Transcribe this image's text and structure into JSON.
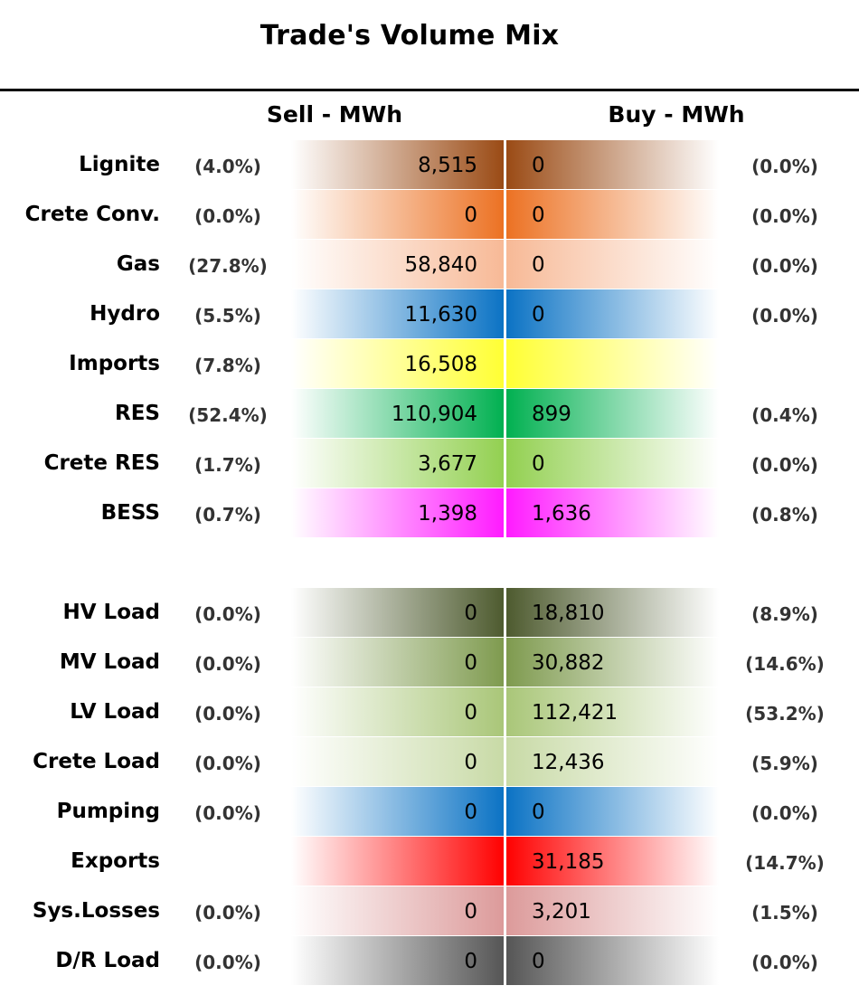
{
  "title": "Trade's Volume Mix",
  "headers": {
    "sell": "Sell - MWh",
    "buy": "Buy - MWh"
  },
  "chart_data": {
    "type": "table",
    "title": "Trade's Volume Mix",
    "columns": [
      "Sell - MWh",
      "Buy - MWh"
    ],
    "groups": [
      {
        "rows": [
          {
            "label": "Lignite",
            "sell_pct": "(4.0%)",
            "sell": "8,515",
            "sell_num": 8515,
            "buy": "0",
            "buy_num": 0,
            "buy_pct": "(0.0%)",
            "color": "#9a4a14"
          },
          {
            "label": "Crete Conv.",
            "sell_pct": "(0.0%)",
            "sell": "0",
            "sell_num": 0,
            "buy": "0",
            "buy_num": 0,
            "buy_pct": "(0.0%)",
            "color": "#ec7122"
          },
          {
            "label": "Gas",
            "sell_pct": "(27.8%)",
            "sell": "58,840",
            "sell_num": 58840,
            "buy": "0",
            "buy_num": 0,
            "buy_pct": "(0.0%)",
            "color": "#f7b996"
          },
          {
            "label": "Hydro",
            "sell_pct": "(5.5%)",
            "sell": "11,630",
            "sell_num": 11630,
            "buy": "0",
            "buy_num": 0,
            "buy_pct": "(0.0%)",
            "color": "#0a72c4"
          },
          {
            "label": "Imports",
            "sell_pct": "(7.8%)",
            "sell": "16,508",
            "sell_num": 16508,
            "buy": "",
            "buy_num": null,
            "buy_pct": "",
            "color": "#ffff33"
          },
          {
            "label": "RES",
            "sell_pct": "(52.4%)",
            "sell": "110,904",
            "sell_num": 110904,
            "buy": "899",
            "buy_num": 899,
            "buy_pct": "(0.4%)",
            "color": "#00b050"
          },
          {
            "label": "Crete RES",
            "sell_pct": "(1.7%)",
            "sell": "3,677",
            "sell_num": 3677,
            "buy": "0",
            "buy_num": 0,
            "buy_pct": "(0.0%)",
            "color": "#92d050"
          },
          {
            "label": "BESS",
            "sell_pct": "(0.7%)",
            "sell": "1,398",
            "sell_num": 1398,
            "buy": "1,636",
            "buy_num": 1636,
            "buy_pct": "(0.8%)",
            "color": "#ff1aff"
          }
        ]
      },
      {
        "rows": [
          {
            "label": "HV Load",
            "sell_pct": "(0.0%)",
            "sell": "0",
            "sell_num": 0,
            "buy": "18,810",
            "buy_num": 18810,
            "buy_pct": "(8.9%)",
            "color": "#4d5a2e"
          },
          {
            "label": "MV Load",
            "sell_pct": "(0.0%)",
            "sell": "0",
            "sell_num": 0,
            "buy": "30,882",
            "buy_num": 30882,
            "buy_pct": "(14.6%)",
            "color": "#7e9a4e"
          },
          {
            "label": "LV Load",
            "sell_pct": "(0.0%)",
            "sell": "0",
            "sell_num": 0,
            "buy": "112,421",
            "buy_num": 112421,
            "buy_pct": "(53.2%)",
            "color": "#a9c678"
          },
          {
            "label": "Crete Load",
            "sell_pct": "(0.0%)",
            "sell": "0",
            "sell_num": 0,
            "buy": "12,436",
            "buy_num": 12436,
            "buy_pct": "(5.9%)",
            "color": "#c8daa6"
          },
          {
            "label": "Pumping",
            "sell_pct": "(0.0%)",
            "sell": "0",
            "sell_num": 0,
            "buy": "0",
            "buy_num": 0,
            "buy_pct": "(0.0%)",
            "color": "#0a72c4"
          },
          {
            "label": "Exports",
            "sell_pct": "",
            "sell": "",
            "sell_num": null,
            "buy": "31,185",
            "buy_num": 31185,
            "buy_pct": "(14.7%)",
            "color": "#ff0000"
          },
          {
            "label": "Sys.Losses",
            "sell_pct": "(0.0%)",
            "sell": "0",
            "sell_num": 0,
            "buy": "3,201",
            "buy_num": 3201,
            "buy_pct": "(1.5%)",
            "color": "#dc9a9a"
          },
          {
            "label": "D/R Load",
            "sell_pct": "(0.0%)",
            "sell": "0",
            "sell_num": 0,
            "buy": "0",
            "buy_num": 0,
            "buy_pct": "(0.0%)",
            "color": "#555555"
          }
        ]
      }
    ]
  }
}
